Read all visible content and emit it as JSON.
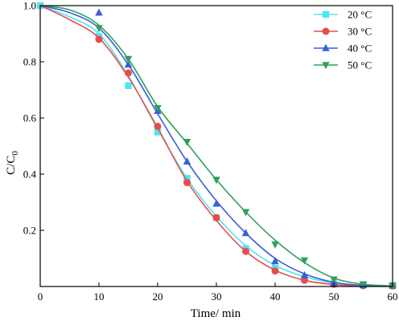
{
  "chart_data": {
    "type": "line",
    "title": "",
    "xlabel": "Time/ min",
    "ylabel_main": "C/C",
    "ylabel_sub": "0",
    "xlim": [
      0,
      60
    ],
    "ylim": [
      0,
      1.0
    ],
    "xticks": [
      0,
      10,
      20,
      30,
      40,
      50,
      60
    ],
    "yticks": [
      0.2,
      0.4,
      0.6,
      0.8,
      1.0
    ],
    "ytick_labels": [
      "0.2",
      "0.4",
      "0.6",
      "0.8",
      "1.0"
    ],
    "grid": false,
    "legend_position": "top-right",
    "series": [
      {
        "name": "20 °C",
        "color": "#4ee6f0",
        "marker": "square",
        "points": [
          [
            0,
            1.0
          ],
          [
            10,
            0.89
          ],
          [
            15,
            0.715
          ],
          [
            20,
            0.55
          ],
          [
            25,
            0.385
          ],
          [
            30,
            0.245
          ],
          [
            35,
            0.135
          ],
          [
            40,
            0.065
          ],
          [
            45,
            0.03
          ],
          [
            50,
            0.01
          ],
          [
            55,
            0.005
          ],
          [
            60,
            0.003
          ]
        ],
        "curve": [
          [
            0,
            1.0
          ],
          [
            5,
            0.96
          ],
          [
            10,
            0.9
          ],
          [
            15,
            0.75
          ],
          [
            20,
            0.56
          ],
          [
            25,
            0.385
          ],
          [
            30,
            0.25
          ],
          [
            35,
            0.145
          ],
          [
            40,
            0.075
          ],
          [
            45,
            0.035
          ],
          [
            50,
            0.012
          ],
          [
            55,
            0.004
          ],
          [
            60,
            0.002
          ]
        ]
      },
      {
        "name": "30 °C",
        "color": "#e84c4c",
        "marker": "circle",
        "points": [
          [
            10,
            0.88
          ],
          [
            15,
            0.76
          ],
          [
            20,
            0.57
          ],
          [
            25,
            0.37
          ],
          [
            30,
            0.245
          ],
          [
            35,
            0.125
          ],
          [
            40,
            0.055
          ],
          [
            45,
            0.022
          ],
          [
            50,
            0.008
          ],
          [
            55,
            0.003
          ],
          [
            60,
            0.002
          ]
        ],
        "curve": [
          [
            0,
            1.0
          ],
          [
            5,
            0.95
          ],
          [
            10,
            0.885
          ],
          [
            15,
            0.745
          ],
          [
            20,
            0.565
          ],
          [
            25,
            0.375
          ],
          [
            30,
            0.235
          ],
          [
            35,
            0.125
          ],
          [
            40,
            0.058
          ],
          [
            45,
            0.022
          ],
          [
            50,
            0.007
          ],
          [
            55,
            0.002
          ],
          [
            60,
            0.001
          ]
        ]
      },
      {
        "name": "40 °C",
        "color": "#3a5fd8",
        "marker": "triangle-up",
        "points": [
          [
            10,
            0.975
          ],
          [
            15,
            0.79
          ],
          [
            20,
            0.625
          ],
          [
            25,
            0.445
          ],
          [
            30,
            0.295
          ],
          [
            35,
            0.19
          ],
          [
            40,
            0.09
          ],
          [
            45,
            0.04
          ],
          [
            50,
            0.012
          ],
          [
            55,
            0.005
          ],
          [
            60,
            0.003
          ]
        ],
        "curve": [
          [
            0,
            1.0
          ],
          [
            5,
            0.975
          ],
          [
            10,
            0.92
          ],
          [
            15,
            0.79
          ],
          [
            20,
            0.615
          ],
          [
            25,
            0.445
          ],
          [
            30,
            0.305
          ],
          [
            35,
            0.19
          ],
          [
            40,
            0.1
          ],
          [
            45,
            0.045
          ],
          [
            50,
            0.015
          ],
          [
            55,
            0.004
          ],
          [
            60,
            0.001
          ]
        ]
      },
      {
        "name": "50 °C",
        "color": "#2ea05a",
        "marker": "triangle-down",
        "points": [
          [
            10,
            0.92
          ],
          [
            15,
            0.81
          ],
          [
            20,
            0.635
          ],
          [
            25,
            0.515
          ],
          [
            30,
            0.38
          ],
          [
            35,
            0.265
          ],
          [
            40,
            0.15
          ],
          [
            45,
            0.093
          ],
          [
            50,
            0.025
          ],
          [
            55,
            0.008
          ],
          [
            60,
            0.004
          ]
        ],
        "curve": [
          [
            0,
            1.0
          ],
          [
            5,
            0.985
          ],
          [
            10,
            0.93
          ],
          [
            15,
            0.81
          ],
          [
            20,
            0.64
          ],
          [
            25,
            0.51
          ],
          [
            30,
            0.38
          ],
          [
            35,
            0.265
          ],
          [
            40,
            0.165
          ],
          [
            45,
            0.085
          ],
          [
            50,
            0.03
          ],
          [
            55,
            0.008
          ],
          [
            60,
            0.002
          ]
        ]
      }
    ]
  }
}
